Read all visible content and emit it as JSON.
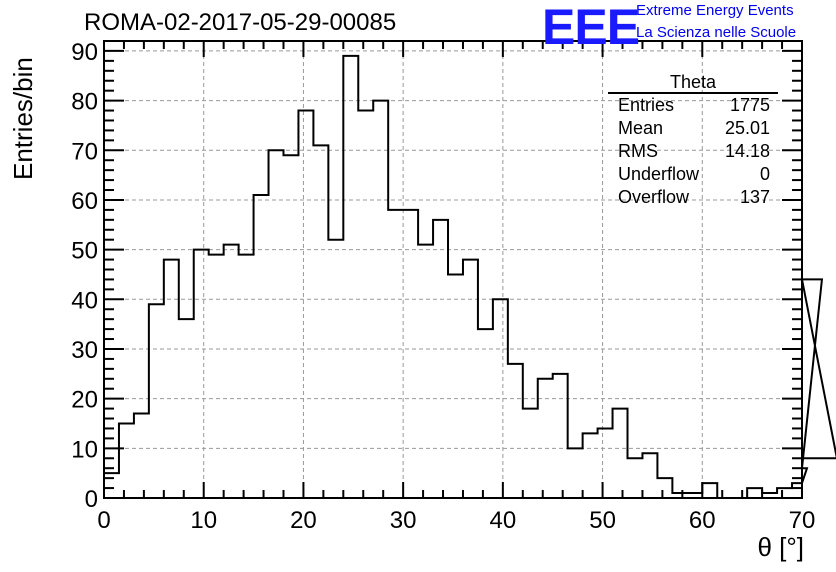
{
  "chart_data": {
    "type": "histogram",
    "title": "ROMA-02-2017-05-29-00085",
    "xlabel": "θ [°]",
    "ylabel": "Entries/bin",
    "xlim": [
      0,
      70
    ],
    "ylim": [
      0,
      92
    ],
    "x_ticks": [
      "0",
      "10",
      "20",
      "30",
      "40",
      "50",
      "60",
      "70"
    ],
    "y_ticks": [
      "0",
      "10",
      "20",
      "30",
      "40",
      "50",
      "60",
      "70",
      "80",
      "90"
    ],
    "grid": true,
    "bin_width": 1.5,
    "bin_edges_start": 0,
    "values": [
      5,
      15,
      17,
      39,
      48,
      36,
      50,
      49,
      51,
      49,
      61,
      70,
      69,
      78,
      71,
      52,
      89,
      78,
      80,
      58,
      58,
      51,
      56,
      45,
      48,
      34,
      40,
      27,
      18,
      24,
      25,
      10,
      13,
      14,
      18,
      8,
      9,
      4,
      1,
      1,
      3,
      0,
      0,
      2,
      1,
      2,
      3,
      6,
      44,
      8
    ],
    "stats": {
      "title": "Theta",
      "rows": [
        {
          "label": "Entries",
          "value": "1775"
        },
        {
          "label": "Mean",
          "value": "25.01"
        },
        {
          "label": "RMS",
          "value": "14.18"
        },
        {
          "label": "Underflow",
          "value": "0"
        },
        {
          "label": "Overflow",
          "value": "137"
        }
      ]
    }
  },
  "logo": {
    "mark": "EEE",
    "line1": "Extreme Energy Events",
    "line2": "La Scienza nelle Scuole"
  }
}
